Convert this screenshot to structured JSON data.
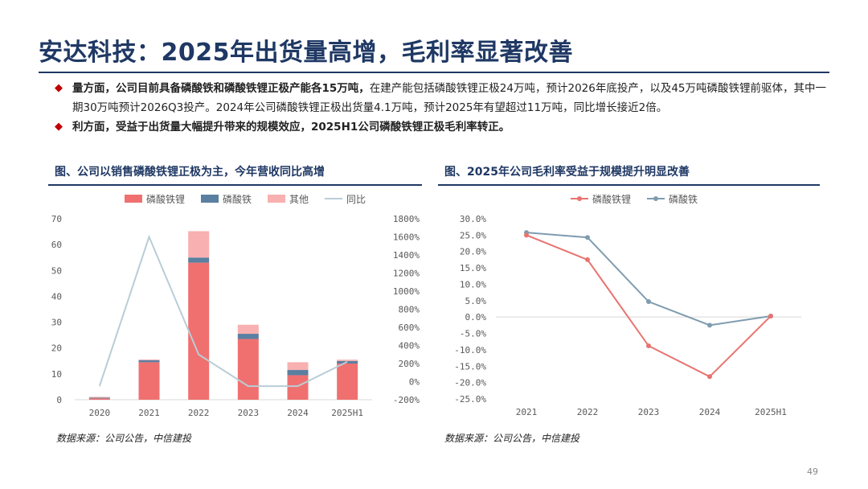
{
  "header": {
    "title": "安达科技：2025年出货量高增，毛利率显著改善"
  },
  "bullets": [
    {
      "bold": "量方面，公司目前具备磷酸铁和磷酸铁锂正极产能各15万吨，",
      "text": "在建产能包括磷酸铁锂正极24万吨，预计2026年底投产，以及45万吨磷酸铁锂前驱体，其中一期30万吨预计2026Q3投产。2024年公司磷酸铁锂正极出货量4.1万吨，预计2025年有望超过11万吨，同比增长接近2倍。"
    },
    {
      "bold": "利方面，受益于出货量大幅提升带来的规模效应，2025H1公司磷酸铁锂正极毛利率转正。",
      "text": ""
    }
  ],
  "left_panel": {
    "title": "图、公司以销售磷酸铁锂正极为主，今年营收同比高增",
    "source": "数据来源：公司公告，中信建投"
  },
  "right_panel": {
    "title": "图、2025年公司毛利率受益于规模提升明显改善",
    "source": "数据来源：公司公告，中信建投"
  },
  "page_number": "49",
  "colors": {
    "lfp": "#f07070",
    "fp": "#5b7fa0",
    "other": "#f8b0b0",
    "yoy": "#b9cdd6",
    "lfp_line": "#e8736f",
    "fp_line": "#7f9cb0",
    "title": "#1f3864",
    "bullet": "#c00000"
  },
  "chart_data": [
    {
      "type": "bar",
      "stacked": true,
      "categories": [
        "2020",
        "2021",
        "2022",
        "2023",
        "2024",
        "2025H1"
      ],
      "series": [
        {
          "name": "磷酸铁锂",
          "values": [
            0.5,
            14.5,
            53.0,
            23.5,
            9.5,
            14.0
          ]
        },
        {
          "name": "磷酸铁",
          "values": [
            0.3,
            0.8,
            2.0,
            2.0,
            2.0,
            1.0
          ]
        },
        {
          "name": "其他",
          "values": [
            0.3,
            0.3,
            10.2,
            3.5,
            3.0,
            0.5
          ]
        }
      ],
      "line_series": {
        "name": "同比",
        "axis": "right",
        "values": [
          -50,
          1600,
          300,
          -50,
          -50,
          220
        ]
      },
      "ylim": [
        0,
        70
      ],
      "yticks": [
        "0",
        "10",
        "20",
        "30",
        "40",
        "50",
        "60",
        "70"
      ],
      "y2lim": [
        -200,
        1800
      ],
      "y2ticks": [
        "-200%",
        "0%",
        "200%",
        "400%",
        "600%",
        "800%",
        "1000%",
        "1200%",
        "1400%",
        "1600%",
        "1800%"
      ],
      "legend": "top",
      "grid": false
    },
    {
      "type": "line",
      "categories": [
        "2021",
        "2022",
        "2023",
        "2024",
        "2025H1"
      ],
      "series": [
        {
          "name": "磷酸铁锂",
          "values": [
            25.0,
            17.5,
            -8.8,
            -18.2,
            0.3
          ]
        },
        {
          "name": "磷酸铁",
          "values": [
            25.8,
            24.3,
            4.7,
            -2.5,
            0.3
          ]
        }
      ],
      "ylim": [
        -25,
        30
      ],
      "yticks": [
        "30.0%",
        "25.0%",
        "20.0%",
        "15.0%",
        "10.0%",
        "5.0%",
        "0.0%",
        "-5.0%",
        "-10.0%",
        "-15.0%",
        "-20.0%",
        "-25.0%"
      ],
      "legend": "top",
      "grid": false
    }
  ]
}
